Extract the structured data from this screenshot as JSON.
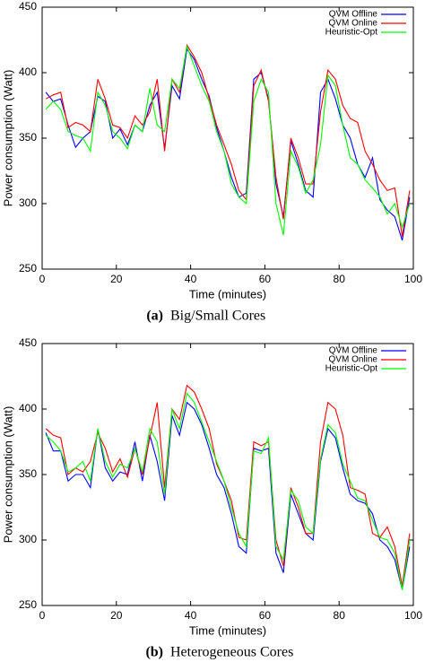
{
  "chart_data": [
    {
      "type": "line",
      "x_label": "Time (minutes)",
      "y_label": "Power consumption (Watt)",
      "caption_label": "(a)",
      "caption": "Big/Small Cores",
      "legend": "upper right",
      "xlim": [
        0,
        100
      ],
      "ylim": [
        250,
        450
      ],
      "xticks": [
        0,
        20,
        40,
        60,
        80,
        100
      ],
      "yticks": [
        250,
        300,
        350,
        400,
        450
      ],
      "x": [
        1,
        3,
        5,
        7,
        9,
        11,
        13,
        15,
        17,
        19,
        21,
        23,
        25,
        27,
        29,
        31,
        33,
        35,
        37,
        39,
        41,
        43,
        45,
        47,
        49,
        51,
        53,
        55,
        57,
        59,
        61,
        63,
        65,
        67,
        69,
        71,
        73,
        75,
        77,
        79,
        81,
        83,
        85,
        87,
        89,
        91,
        93,
        95,
        97,
        99
      ],
      "series": [
        {
          "name": "QVM Offline",
          "color": "#0000ff",
          "values": [
            385,
            378,
            380,
            360,
            343,
            350,
            355,
            382,
            378,
            350,
            357,
            345,
            360,
            355,
            375,
            385,
            342,
            390,
            380,
            418,
            410,
            395,
            382,
            358,
            340,
            320,
            305,
            308,
            395,
            400,
            380,
            315,
            290,
            348,
            330,
            310,
            305,
            385,
            395,
            380,
            360,
            350,
            330,
            320,
            335,
            303,
            295,
            290,
            272,
            305
          ]
        },
        {
          "name": "QVM Online",
          "color": "#ff0000",
          "values": [
            380,
            383,
            385,
            358,
            362,
            360,
            355,
            395,
            380,
            360,
            358,
            350,
            367,
            360,
            370,
            395,
            340,
            395,
            385,
            421,
            412,
            400,
            380,
            360,
            345,
            330,
            310,
            303,
            390,
            402,
            378,
            320,
            288,
            350,
            335,
            315,
            315,
            370,
            402,
            395,
            375,
            365,
            362,
            340,
            330,
            318,
            310,
            312,
            275,
            310
          ]
        },
        {
          "name": "Heuristic-Opt",
          "color": "#00ff00",
          "values": [
            372,
            378,
            372,
            355,
            352,
            350,
            340,
            385,
            375,
            355,
            350,
            342,
            360,
            355,
            388,
            360,
            355,
            395,
            388,
            420,
            405,
            390,
            378,
            355,
            340,
            315,
            305,
            300,
            378,
            395,
            385,
            300,
            276,
            340,
            328,
            308,
            318,
            345,
            398,
            390,
            360,
            335,
            330,
            318,
            312,
            305,
            292,
            300,
            282,
            300
          ]
        }
      ]
    },
    {
      "type": "line",
      "x_label": "Time (minutes)",
      "y_label": "Power consumption (Watt)",
      "caption_label": "(b)",
      "caption": "Heterogeneous Cores",
      "legend": "upper right",
      "xlim": [
        0,
        100
      ],
      "ylim": [
        250,
        450
      ],
      "xticks": [
        0,
        20,
        40,
        60,
        80,
        100
      ],
      "yticks": [
        250,
        300,
        350,
        400,
        450
      ],
      "x": [
        1,
        3,
        5,
        7,
        9,
        11,
        13,
        15,
        17,
        19,
        21,
        23,
        25,
        27,
        29,
        31,
        33,
        35,
        37,
        39,
        41,
        43,
        45,
        47,
        49,
        51,
        53,
        55,
        57,
        59,
        61,
        63,
        65,
        67,
        69,
        71,
        73,
        75,
        77,
        79,
        81,
        83,
        85,
        87,
        89,
        91,
        93,
        95,
        97,
        99
      ],
      "series": [
        {
          "name": "QVM Offline",
          "color": "#0000ff",
          "values": [
            382,
            368,
            368,
            345,
            350,
            350,
            340,
            385,
            355,
            345,
            352,
            350,
            375,
            345,
            380,
            360,
            330,
            395,
            380,
            405,
            400,
            388,
            370,
            350,
            340,
            320,
            295,
            290,
            370,
            368,
            370,
            290,
            275,
            335,
            320,
            305,
            300,
            360,
            385,
            378,
            355,
            335,
            330,
            328,
            320,
            300,
            295,
            285,
            262,
            295
          ]
        },
        {
          "name": "QVM Online",
          "color": "#ff0000",
          "values": [
            385,
            380,
            378,
            350,
            355,
            352,
            360,
            382,
            370,
            352,
            362,
            348,
            370,
            350,
            378,
            405,
            340,
            400,
            392,
            418,
            413,
            400,
            385,
            358,
            345,
            330,
            302,
            300,
            375,
            372,
            375,
            300,
            280,
            340,
            325,
            305,
            305,
            375,
            405,
            400,
            380,
            340,
            338,
            335,
            305,
            302,
            310,
            295,
            265,
            305
          ]
        },
        {
          "name": "Heuristic-Opt",
          "color": "#00ff00",
          "values": [
            380,
            375,
            368,
            352,
            355,
            360,
            345,
            385,
            360,
            348,
            358,
            355,
            370,
            352,
            385,
            375,
            335,
            400,
            385,
            412,
            405,
            390,
            375,
            360,
            345,
            325,
            305,
            295,
            368,
            366,
            378,
            295,
            285,
            338,
            330,
            310,
            305,
            362,
            388,
            382,
            358,
            345,
            332,
            330,
            315,
            302,
            300,
            290,
            262,
            300
          ]
        }
      ]
    }
  ]
}
